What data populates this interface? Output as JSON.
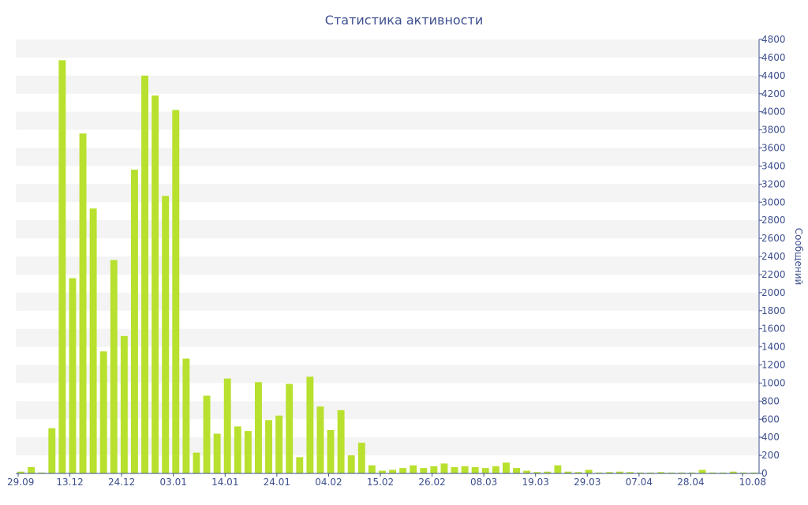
{
  "chart_data": {
    "type": "bar",
    "title": "Статистика активности",
    "xlabel": "",
    "ylabel": "Сообщений",
    "ylim": [
      0,
      4800
    ],
    "y_tick_step": 200,
    "y_axis_side": "right",
    "grid": "alternating horizontal bands",
    "legend": "none",
    "x_tick_labels": [
      "29.09",
      "13.12",
      "24.12",
      "03.01",
      "14.01",
      "24.01",
      "04.02",
      "15.02",
      "26.02",
      "08.03",
      "19.03",
      "29.03",
      "07.04",
      "28.04",
      "10.08"
    ],
    "values": [
      20,
      70,
      10,
      500,
      4570,
      2160,
      3760,
      2930,
      1350,
      2360,
      1520,
      3360,
      4400,
      4180,
      3070,
      4020,
      1270,
      230,
      860,
      440,
      1050,
      520,
      470,
      1010,
      590,
      640,
      990,
      180,
      1070,
      740,
      480,
      700,
      200,
      340,
      90,
      30,
      40,
      60,
      90,
      60,
      80,
      110,
      70,
      80,
      70,
      60,
      80,
      120,
      60,
      30,
      15,
      20,
      90,
      20,
      15,
      40,
      10,
      15,
      20,
      15,
      10,
      10,
      15,
      10,
      10,
      10,
      40,
      10,
      10,
      20,
      10,
      10
    ]
  },
  "colors": {
    "bar": "#b8e02e",
    "band": "#f4f4f4",
    "text": "#3d4f8f",
    "axis": "#3d4f8f"
  }
}
